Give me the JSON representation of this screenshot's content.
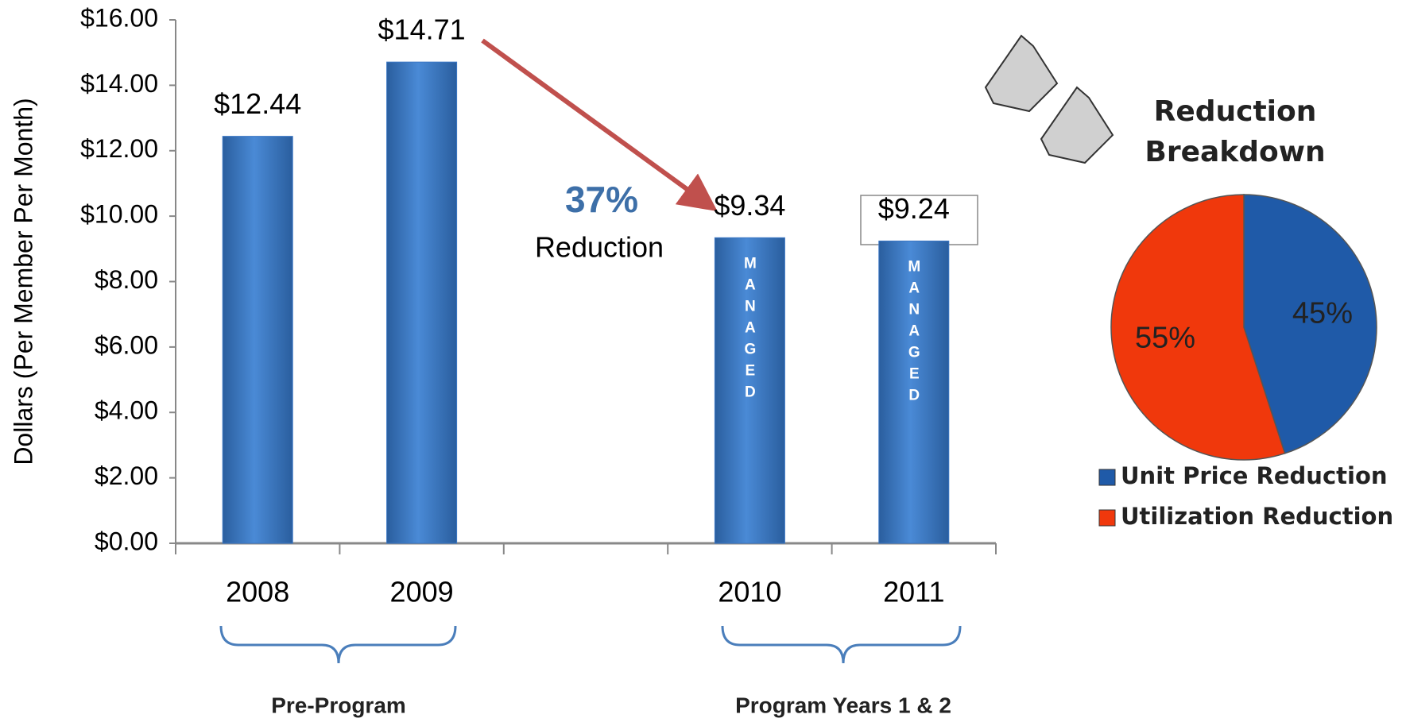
{
  "chart_data": [
    {
      "type": "bar",
      "y_label": "Dollars (Per Member Per Month)",
      "categories": [
        "2008",
        "2009",
        null,
        "2010",
        "2011"
      ],
      "values": [
        12.44,
        14.71,
        null,
        9.34,
        9.24
      ],
      "value_labels": [
        "$12.44",
        "$14.71",
        null,
        "$9.34",
        "$9.24"
      ],
      "bar_labels": [
        null,
        null,
        null,
        "MANAGED",
        "MANAGED"
      ],
      "color": "#3a76c4",
      "ylim": [
        0,
        16
      ],
      "yticks": [
        {
          "value": 0,
          "label": "$0.00"
        },
        {
          "value": 2,
          "label": "$2.00"
        },
        {
          "value": 4,
          "label": "$4.00"
        },
        {
          "value": 6,
          "label": "$6.00"
        },
        {
          "value": 8,
          "label": "$8.00"
        },
        {
          "value": 10,
          "label": "$10.00"
        },
        {
          "value": 12,
          "label": "$12.00"
        },
        {
          "value": 14,
          "label": "$14.00"
        },
        {
          "value": 16,
          "label": "$16.00"
        }
      ],
      "annotations": [
        "37%",
        "Reduction"
      ],
      "group_labels": [
        "Pre-Program",
        "Program Years 1 & 2"
      ]
    },
    {
      "type": "pie",
      "title": [
        "Reduction",
        "Breakdown"
      ],
      "categories": [
        "Unit Price Reduction",
        "Utilization Reduction"
      ],
      "values": [
        45,
        55
      ],
      "value_labels": [
        "45%",
        "55%"
      ],
      "colors": [
        "#1f5aa8",
        "#f0380c"
      ],
      "legend": "bottom"
    }
  ]
}
